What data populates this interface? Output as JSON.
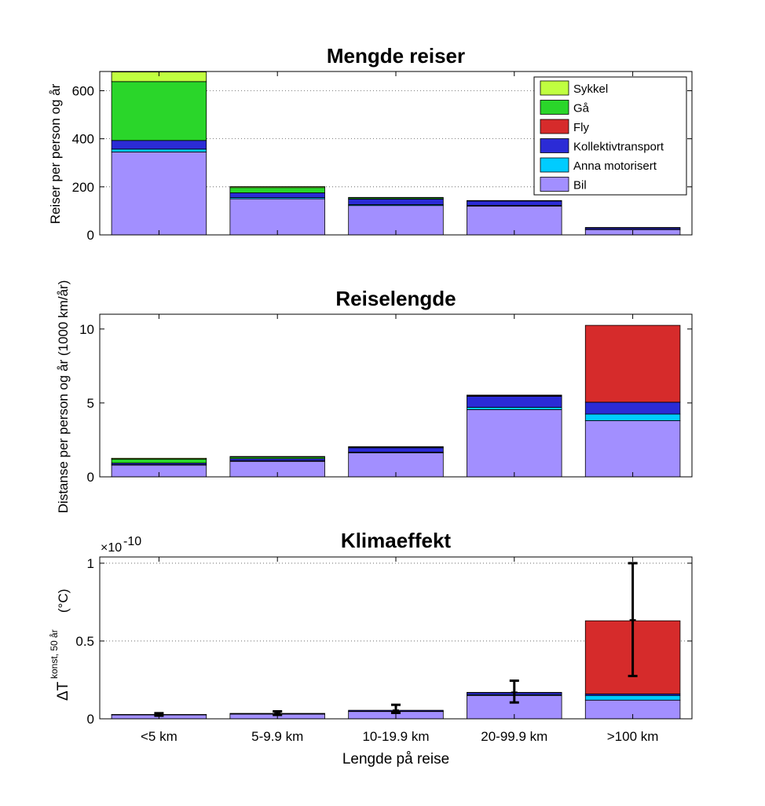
{
  "chart_data": [
    {
      "type": "bar",
      "stacked": true,
      "title": "Mengde reiser",
      "ylabel": "Reiser per person og år",
      "xlabel": "",
      "ylim": [
        0,
        680
      ],
      "yticks": [
        0,
        200,
        400,
        600
      ],
      "grid": "y-dotted",
      "legend": {
        "position": "top-right",
        "entries": [
          "Sykkel",
          "Gå",
          "Fly",
          "Kollektivtransport",
          "Anna motorisert",
          "Bil"
        ]
      },
      "categories": [
        "<5 km",
        "5-9.9 km",
        "10-19.9 km",
        "20-99.9 km",
        ">100 km"
      ],
      "series": [
        {
          "name": "Bil",
          "color": "#a28fff",
          "values": [
            345,
            150,
            122,
            120,
            22
          ]
        },
        {
          "name": "Anna motorisert",
          "color": "#00ccff",
          "values": [
            12,
            5,
            4,
            3,
            1
          ]
        },
        {
          "name": "Kollektivtransport",
          "color": "#2b2bd6",
          "values": [
            36,
            20,
            23,
            18,
            6
          ]
        },
        {
          "name": "Fly",
          "color": "#d62b2b",
          "values": [
            0,
            0,
            0,
            0,
            2
          ]
        },
        {
          "name": "Gå",
          "color": "#2ad62a",
          "values": [
            245,
            22,
            5,
            1,
            0
          ]
        },
        {
          "name": "Sykkel",
          "color": "#c0ff40",
          "values": [
            40,
            4,
            2,
            1,
            0
          ]
        }
      ]
    },
    {
      "type": "bar",
      "stacked": true,
      "title": "Reiselengde",
      "ylabel": "Distanse per person og år (1000 km/år)",
      "xlabel": "",
      "ylim": [
        0,
        11
      ],
      "yticks": [
        0,
        5,
        10
      ],
      "grid": "none",
      "categories": [
        "<5 km",
        "5-9.9 km",
        "10-19.9 km",
        "20-99.9 km",
        ">100 km"
      ],
      "series": [
        {
          "name": "Bil",
          "color": "#a28fff",
          "values": [
            0.8,
            1.05,
            1.62,
            4.55,
            3.8
          ]
        },
        {
          "name": "Anna motorisert",
          "color": "#00ccff",
          "values": [
            0.03,
            0.04,
            0.05,
            0.15,
            0.45
          ]
        },
        {
          "name": "Kollektivtransport",
          "color": "#2b2bd6",
          "values": [
            0.1,
            0.14,
            0.3,
            0.75,
            0.8
          ]
        },
        {
          "name": "Fly",
          "color": "#d62b2b",
          "values": [
            0,
            0,
            0,
            0.05,
            5.2
          ]
        },
        {
          "name": "Gå",
          "color": "#2ad62a",
          "values": [
            0.27,
            0.11,
            0.05,
            0.02,
            0
          ]
        },
        {
          "name": "Sykkel",
          "color": "#c0ff40",
          "values": [
            0.06,
            0.04,
            0.02,
            0.01,
            0
          ]
        }
      ]
    },
    {
      "type": "bar",
      "stacked": true,
      "title": "Klimaeffekt",
      "ylabel_main": "ΔT",
      "ylabel_super": "konst, 50 år",
      "ylabel_unit": "(°C)",
      "xlabel": "Lengde på reise",
      "exponent_label": "×10",
      "exponent_power": "-10",
      "ylim": [
        0,
        1.04
      ],
      "yticks": [
        0,
        0.5,
        1
      ],
      "ytick_labels": [
        "0",
        "0.5",
        "1"
      ],
      "grid": "y-dotted",
      "categories": [
        "<5 km",
        "5-9.9 km",
        "10-19.9 km",
        "20-99.9 km",
        ">100 km"
      ],
      "series": [
        {
          "name": "Bil",
          "color": "#a28fff",
          "values": [
            0.025,
            0.03,
            0.047,
            0.15,
            0.12
          ]
        },
        {
          "name": "Anna motorisert",
          "color": "#00ccff",
          "values": [
            0.001,
            0.001,
            0.002,
            0.005,
            0.03
          ]
        },
        {
          "name": "Kollektivtransport",
          "color": "#2b2bd6",
          "values": [
            0.002,
            0.004,
            0.006,
            0.013,
            0.01
          ]
        },
        {
          "name": "Fly",
          "color": "#d62b2b",
          "values": [
            0,
            0,
            0,
            0.002,
            0.47
          ]
        },
        {
          "name": "Gå",
          "color": "#2ad62a",
          "values": [
            0,
            0,
            0,
            0,
            0
          ]
        },
        {
          "name": "Sykkel",
          "color": "#c0ff40",
          "values": [
            0,
            0,
            0,
            0,
            0
          ]
        }
      ],
      "error_bars": [
        {
          "center": 0.028,
          "low": 0.02,
          "high": 0.036
        },
        {
          "center": 0.035,
          "low": 0.025,
          "high": 0.048
        },
        {
          "center": 0.055,
          "low": 0.038,
          "high": 0.09
        },
        {
          "center": 0.17,
          "low": 0.105,
          "high": 0.245
        },
        {
          "center": 0.635,
          "low": 0.275,
          "high": 1.0
        }
      ]
    }
  ]
}
